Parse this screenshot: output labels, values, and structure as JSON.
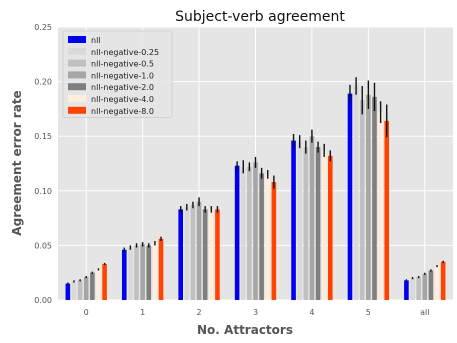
{
  "chart_data": {
    "type": "bar",
    "title": "Subject-verb agreement",
    "xlabel": "No. Attractors",
    "ylabel": "Agreement error rate",
    "categories": [
      "0",
      "1",
      "2",
      "3",
      "4",
      "5",
      "all"
    ],
    "ylim": [
      0,
      0.25
    ],
    "yticks": [
      "0.00",
      "0.05",
      "0.10",
      "0.15",
      "0.20",
      "0.25"
    ],
    "grid": true,
    "legend_position": "top-left",
    "colors": {
      "plot_bg": "#e5e5e5",
      "grid": "#ffffff",
      "error_bar": "#111111"
    },
    "series": [
      {
        "name": "nll",
        "color": "#0000ee",
        "values": [
          0.015,
          0.046,
          0.083,
          0.123,
          0.146,
          0.189,
          0.018
        ],
        "errors": [
          0.001,
          0.002,
          0.003,
          0.004,
          0.006,
          0.008,
          0.001
        ]
      },
      {
        "name": "nll-negative-0.25",
        "color": "#d9d9d9",
        "values": [
          0.017,
          0.048,
          0.085,
          0.122,
          0.145,
          0.196,
          0.02
        ],
        "errors": [
          0.001,
          0.002,
          0.003,
          0.006,
          0.006,
          0.008,
          0.001
        ]
      },
      {
        "name": "nll-negative-0.5",
        "color": "#c0c0c0",
        "values": [
          0.018,
          0.05,
          0.087,
          0.122,
          0.14,
          0.183,
          0.021
        ],
        "errors": [
          0.001,
          0.002,
          0.003,
          0.004,
          0.006,
          0.013,
          0.001
        ]
      },
      {
        "name": "nll-negative-1.0",
        "color": "#a6a6a6",
        "values": [
          0.021,
          0.051,
          0.09,
          0.126,
          0.15,
          0.188,
          0.024
        ],
        "errors": [
          0.001,
          0.002,
          0.004,
          0.005,
          0.006,
          0.013,
          0.001
        ]
      },
      {
        "name": "nll-negative-2.0",
        "color": "#7f7f7f",
        "values": [
          0.025,
          0.05,
          0.083,
          0.116,
          0.14,
          0.186,
          0.027
        ],
        "errors": [
          0.001,
          0.002,
          0.003,
          0.005,
          0.005,
          0.013,
          0.001
        ]
      },
      {
        "name": "nll-negative-4.0",
        "color": "#ffeedd",
        "values": [
          0.028,
          0.052,
          0.083,
          0.115,
          0.137,
          0.172,
          0.031
        ],
        "errors": [
          0.001,
          0.002,
          0.003,
          0.004,
          0.006,
          0.01,
          0.001
        ]
      },
      {
        "name": "nll-negative-8.0",
        "color": "#ff4400",
        "values": [
          0.033,
          0.056,
          0.083,
          0.108,
          0.132,
          0.164,
          0.035
        ],
        "errors": [
          0.001,
          0.002,
          0.003,
          0.006,
          0.005,
          0.015,
          0.001
        ]
      }
    ]
  }
}
